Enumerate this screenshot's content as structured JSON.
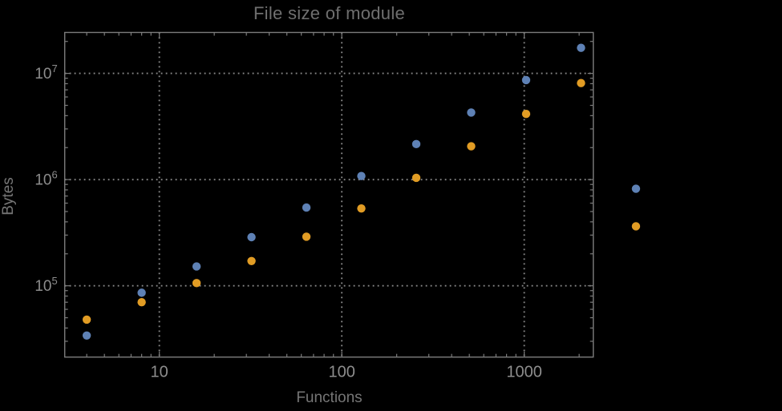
{
  "chart_data": {
    "type": "scatter",
    "title": "File size of module",
    "xlabel": "Functions",
    "ylabel": "Bytes",
    "x_scale": "log",
    "y_scale": "log",
    "x": [
      4,
      8,
      16,
      32,
      64,
      128,
      256,
      512,
      1024,
      2048,
      4096
    ],
    "series": [
      {
        "name": "series-1-blue",
        "color": "#5E81B5",
        "values": [
          34000,
          86000,
          152000,
          287000,
          545000,
          1080000,
          2160000,
          4280000,
          8660000,
          17400000,
          820000
        ]
      },
      {
        "name": "series-2-orange",
        "color": "#E19C24",
        "values": [
          48000,
          70000,
          106000,
          171000,
          290000,
          535000,
          1040000,
          2060000,
          4150000,
          8100000,
          363000
        ]
      }
    ],
    "x_ticks": [
      {
        "value": 10,
        "label": "10"
      },
      {
        "value": 100,
        "label": "100"
      },
      {
        "value": 1000,
        "label": "1000"
      }
    ],
    "y_ticks": [
      {
        "value": 100000,
        "base": "10",
        "exp": "5"
      },
      {
        "value": 1000000,
        "base": "10",
        "exp": "6"
      },
      {
        "value": 10000000,
        "base": "10",
        "exp": "7"
      }
    ],
    "x_range": [
      3.03,
      2390
    ],
    "y_range": [
      21300,
      24300000
    ],
    "grid": "dotted",
    "legend": "none",
    "marker_radius": 5.2,
    "colors": {
      "background": "#000000",
      "frame": "#7c7c7c",
      "grid": "#8a8a8a",
      "tick": "#7c7c7c",
      "title": "#6f6f6f",
      "axis_label": "#767676",
      "tick_label": "#8d8d8d"
    }
  }
}
